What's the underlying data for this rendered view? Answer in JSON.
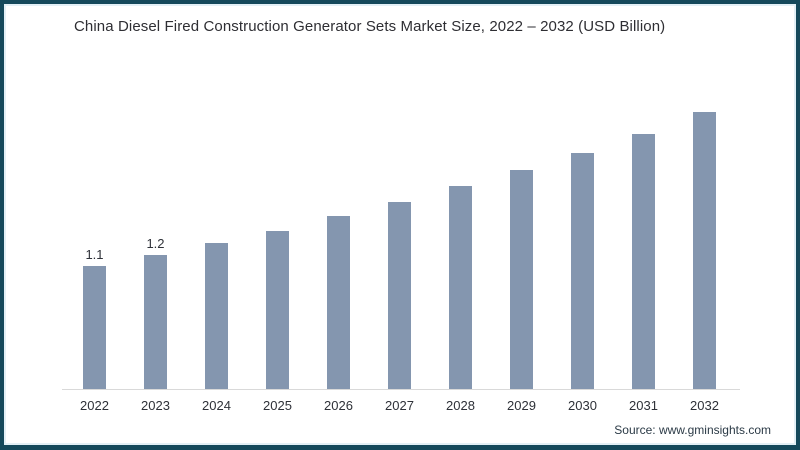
{
  "page": {
    "border_color": "#15495B",
    "background": "#FFFFFF"
  },
  "footer": {
    "source": "Source: www.gminsights.com"
  },
  "chart_data": {
    "type": "bar",
    "title": "China Diesel Fired Construction Generator Sets Market Size, 2022 – 2032 (USD Billion)",
    "xlabel": "",
    "ylabel": "",
    "categories": [
      "2022",
      "2023",
      "2024",
      "2025",
      "2026",
      "2027",
      "2028",
      "2029",
      "2030",
      "2031",
      "2032"
    ],
    "values": [
      1.1,
      1.2,
      1.31,
      1.42,
      1.55,
      1.68,
      1.82,
      1.96,
      2.12,
      2.29,
      2.48
    ],
    "data_labels": [
      "1.1",
      "1.2",
      "",
      "",
      "",
      "",
      "",
      "",
      "",
      "",
      ""
    ],
    "ylim": [
      0,
      2.6
    ],
    "grid": "off",
    "legend": "none",
    "bar_color": "#8496AF",
    "axis_line_color": "#D9D9D9"
  }
}
